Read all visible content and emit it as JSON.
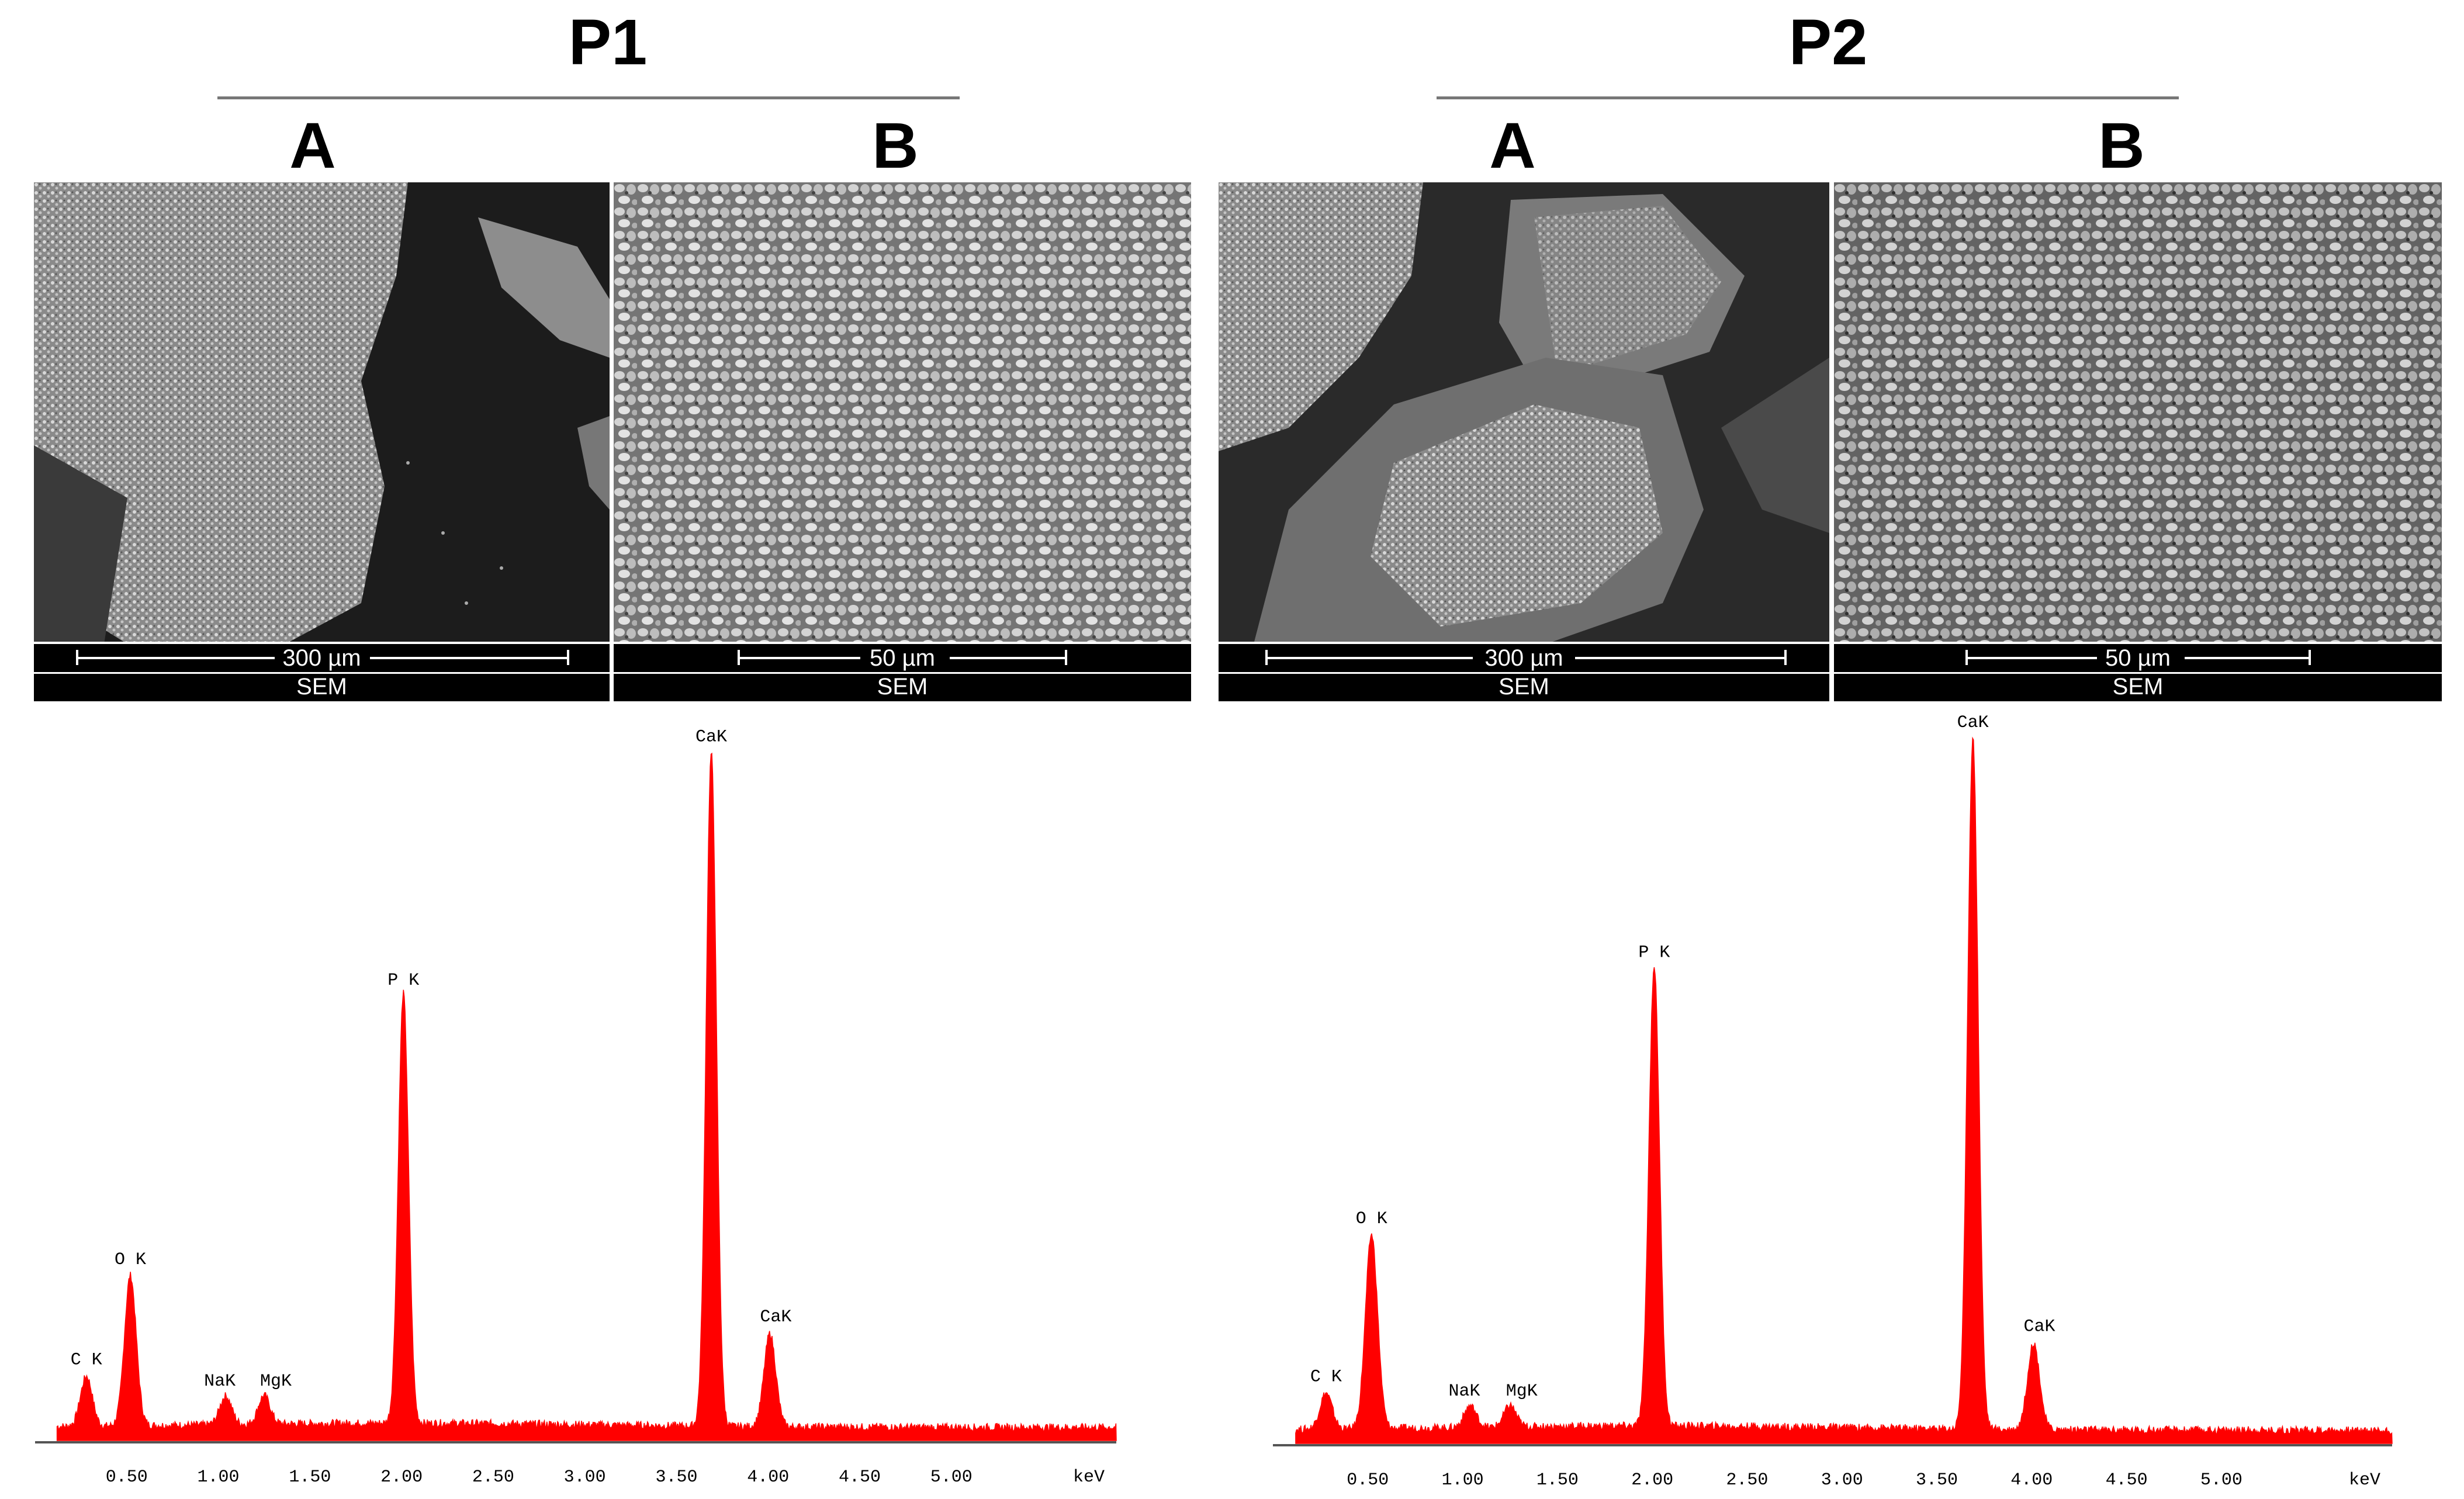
{
  "panels": [
    {
      "title": "P1",
      "micrographs": [
        {
          "label": "A",
          "scale_text": "300 µm",
          "mode": "SEM"
        },
        {
          "label": "B",
          "scale_text": "50 µm",
          "mode": "SEM"
        }
      ]
    },
    {
      "title": "P2",
      "micrographs": [
        {
          "label": "A",
          "scale_text": "300 µm",
          "mode": "SEM"
        },
        {
          "label": "B",
          "scale_text": "50 µm",
          "mode": "SEM"
        }
      ]
    }
  ],
  "chart_data": [
    {
      "type": "line",
      "panel": "P1",
      "xlabel": "keV",
      "x_ticks": [
        "0.50",
        "1.00",
        "1.50",
        "2.00",
        "2.50",
        "3.00",
        "3.50",
        "4.00",
        "4.50",
        "5.00"
      ],
      "xlim": [
        0.0,
        5.9
      ],
      "ylim": [
        0,
        100
      ],
      "color": "#ff0000",
      "peaks": [
        {
          "label": "C  K",
          "x": 0.28,
          "y": 7
        },
        {
          "label": "O  K",
          "x": 0.52,
          "y": 21
        },
        {
          "label": "NaK",
          "x": 1.04,
          "y": 4
        },
        {
          "label": "MgK",
          "x": 1.25,
          "y": 4
        },
        {
          "label": "P  K",
          "x": 2.01,
          "y": 60
        },
        {
          "label": "CaK",
          "x": 3.69,
          "y": 94
        },
        {
          "label": "CaK",
          "x": 4.01,
          "y": 13
        }
      ]
    },
    {
      "type": "line",
      "panel": "P2",
      "xlabel": "keV",
      "x_ticks": [
        "0.50",
        "1.00",
        "1.50",
        "2.00",
        "2.50",
        "3.00",
        "3.50",
        "4.00",
        "4.50",
        "5.00"
      ],
      "xlim": [
        0.0,
        5.9
      ],
      "ylim": [
        0,
        100
      ],
      "color": "#ff0000",
      "peaks": [
        {
          "label": "C  K",
          "x": 0.28,
          "y": 5
        },
        {
          "label": "O  K",
          "x": 0.52,
          "y": 27
        },
        {
          "label": "NaK",
          "x": 1.04,
          "y": 3
        },
        {
          "label": "MgK",
          "x": 1.25,
          "y": 3
        },
        {
          "label": "P  K",
          "x": 2.01,
          "y": 64
        },
        {
          "label": "CaK",
          "x": 3.69,
          "y": 96
        },
        {
          "label": "CaK",
          "x": 4.01,
          "y": 12
        }
      ]
    }
  ]
}
